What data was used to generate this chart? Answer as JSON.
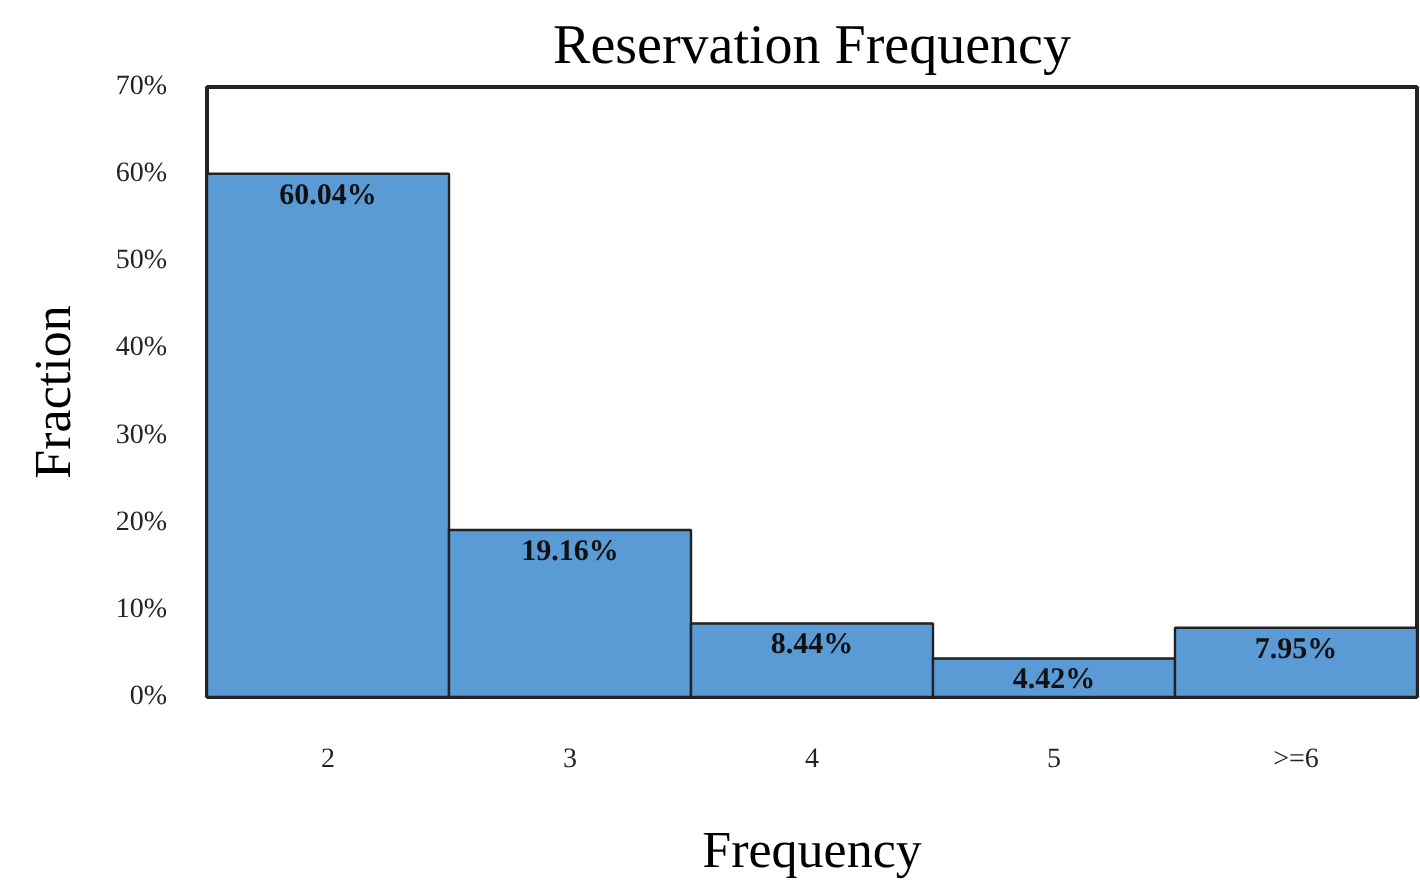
{
  "chart_data": {
    "type": "bar",
    "title": "Reservation Frequency",
    "xlabel": "Frequency",
    "ylabel": "Fraction",
    "categories": [
      "2",
      "3",
      "4",
      "5",
      ">=6"
    ],
    "values": [
      60.04,
      19.16,
      8.44,
      4.42,
      7.95
    ],
    "value_labels": [
      "60.04%",
      "19.16%",
      "8.44%",
      "4.42%",
      "7.95%"
    ],
    "color": "#5b9bd5",
    "ylim": [
      0,
      70
    ],
    "yticks": [
      {
        "value": 0,
        "label": "0%"
      },
      {
        "value": 10,
        "label": "10%"
      },
      {
        "value": 20,
        "label": "20%"
      },
      {
        "value": 30,
        "label": "30%"
      },
      {
        "value": 40,
        "label": "40%"
      },
      {
        "value": 50,
        "label": "50%"
      },
      {
        "value": 60,
        "label": "60%"
      },
      {
        "value": 70,
        "label": "70%"
      }
    ],
    "grid": false
  }
}
